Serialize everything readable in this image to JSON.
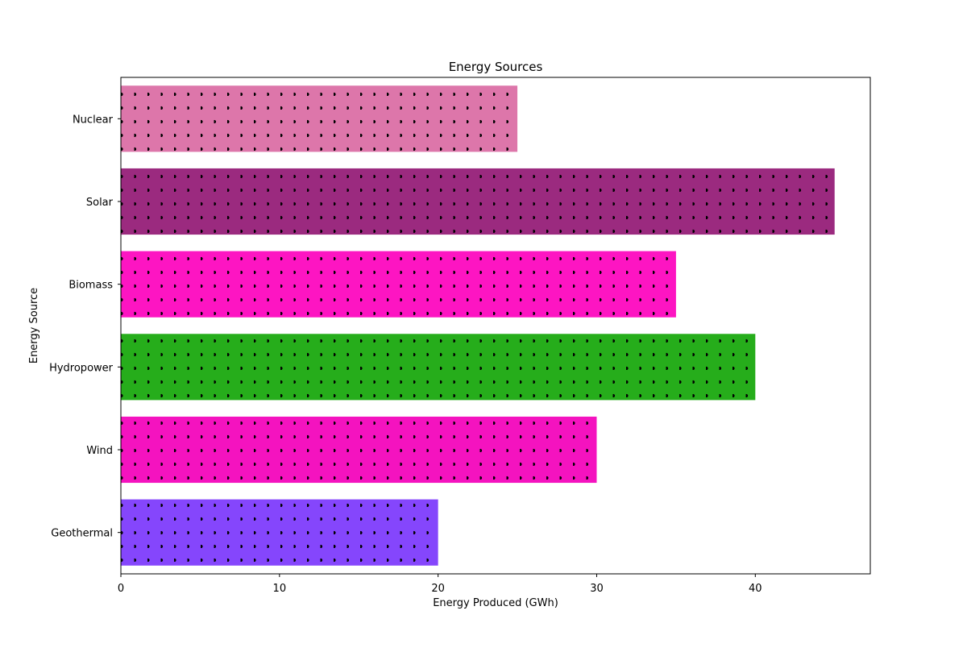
{
  "chart_data": {
    "type": "bar",
    "orientation": "horizontal",
    "title": "Energy Sources",
    "xlabel": "Energy Produced (GWh)",
    "ylabel": "Energy Source",
    "categories": [
      "Nuclear",
      "Solar",
      "Biomass",
      "Hydropower",
      "Wind",
      "Geothermal"
    ],
    "values": [
      25,
      45,
      35,
      40,
      30,
      20
    ],
    "colors": [
      "#dd76aa",
      "#9b2a7f",
      "#fd15c2",
      "#26ad1b",
      "#f413bf",
      "#8546fc"
    ],
    "hatch": "dots",
    "xlim": [
      0,
      47.25
    ],
    "xticks": [
      0,
      10,
      20,
      30,
      40
    ],
    "xtick_labels": [
      "0",
      "10",
      "20",
      "30",
      "40"
    ],
    "grid": false,
    "legend": "none"
  }
}
